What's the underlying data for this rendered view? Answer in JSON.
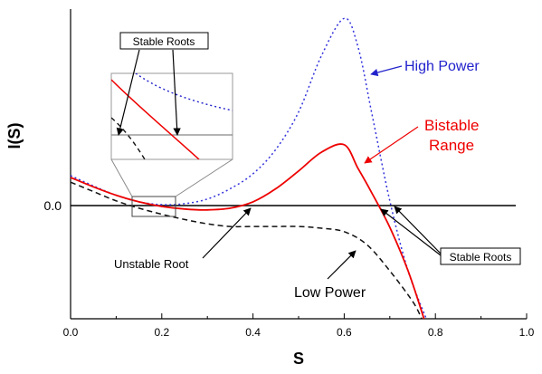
{
  "chart_data": {
    "type": "line",
    "title": "",
    "xlabel": "S",
    "ylabel": "I(S)",
    "xlim": [
      0,
      1
    ],
    "ylim": [
      -0.13,
      0.21
    ],
    "grid": false,
    "x_ticks": [
      "0.0",
      "0.2",
      "0.4",
      "0.6",
      "0.8",
      "1.0"
    ],
    "y_ticks": [
      "0.0"
    ],
    "series": [
      {
        "name": "High Power",
        "style": "dotted",
        "color": "#3333dd",
        "x": [
          0.0,
          0.05,
          0.1,
          0.15,
          0.2,
          0.25,
          0.3,
          0.35,
          0.4,
          0.45,
          0.5,
          0.55,
          0.6,
          0.63,
          0.66,
          0.7,
          0.74,
          0.78
        ],
        "y": [
          0.032,
          0.021,
          0.011,
          0.004,
          0.001,
          0.002,
          0.007,
          0.018,
          0.034,
          0.06,
          0.1,
          0.16,
          0.2,
          0.17,
          0.1,
          0.005,
          -0.075,
          -0.13
        ]
      },
      {
        "name": "Bistable Range",
        "style": "solid",
        "color": "#ee0000",
        "x": [
          0.0,
          0.05,
          0.1,
          0.15,
          0.2,
          0.25,
          0.3,
          0.35,
          0.4,
          0.45,
          0.5,
          0.55,
          0.6,
          0.63,
          0.66,
          0.7,
          0.74,
          0.775
        ],
        "y": [
          0.03,
          0.02,
          0.011,
          0.004,
          -0.001,
          -0.004,
          -0.005,
          -0.003,
          0.004,
          0.018,
          0.037,
          0.057,
          0.065,
          0.04,
          0.014,
          -0.025,
          -0.075,
          -0.13
        ]
      },
      {
        "name": "Low Power",
        "style": "dashed",
        "color": "#111111",
        "x": [
          0.0,
          0.05,
          0.1,
          0.15,
          0.2,
          0.25,
          0.3,
          0.35,
          0.4,
          0.45,
          0.5,
          0.55,
          0.6,
          0.65,
          0.7,
          0.75,
          0.77
        ],
        "y": [
          0.025,
          0.015,
          0.005,
          -0.003,
          -0.01,
          -0.016,
          -0.021,
          -0.024,
          -0.024,
          -0.024,
          -0.024,
          -0.026,
          -0.03,
          -0.045,
          -0.075,
          -0.11,
          -0.13
        ]
      }
    ],
    "annotations": {
      "high_power": "High Power",
      "bistable": [
        "Bistable",
        "Range"
      ],
      "unstable_root": "Unstable Root",
      "low_power": "Low Power",
      "stable_roots_inset": "Stable Roots",
      "stable_roots_main": "Stable Roots"
    },
    "colors": {
      "high_power": "#2222cc",
      "bistable": "#ee0000",
      "axes": "#000000",
      "inset_border": "#999999"
    }
  }
}
